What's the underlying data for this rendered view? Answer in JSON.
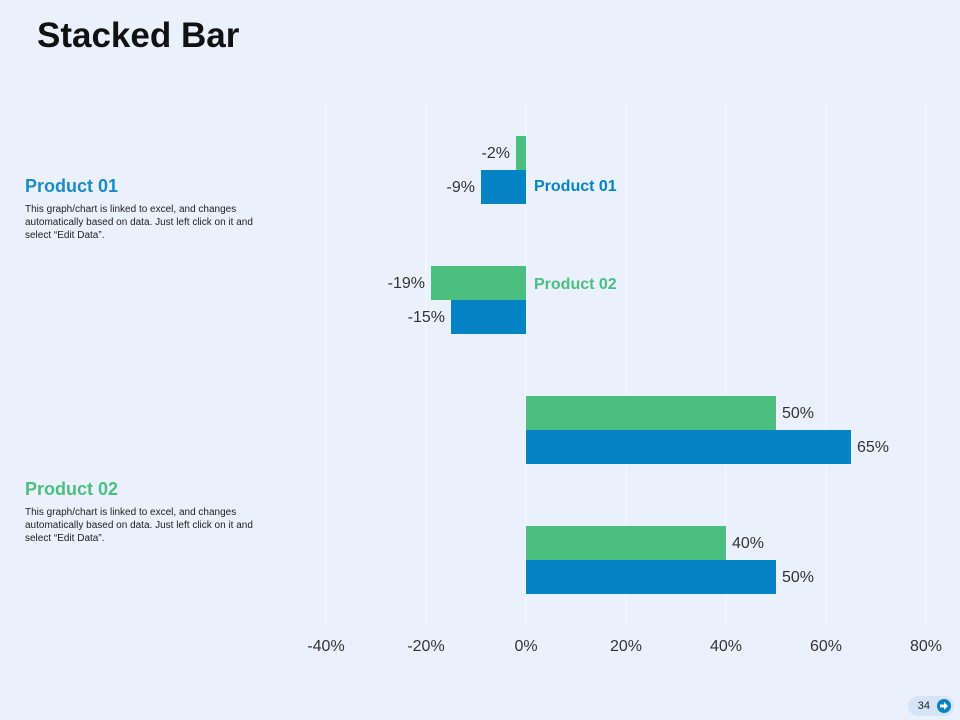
{
  "title": "Stacked Bar",
  "panels": [
    {
      "heading": "Product 01",
      "text": "This graph/chart is linked to excel, and changes automatically based on data. Just left click on it and select “Edit Data”."
    },
    {
      "heading": "Product 02",
      "text": "This graph/chart is linked to excel, and changes automatically based on data. Just left click on it and select “Edit Data”."
    }
  ],
  "page_number": "34",
  "chart_data": {
    "type": "bar",
    "orientation": "horizontal",
    "categories": [
      null,
      null,
      null,
      null
    ],
    "series": [
      {
        "name": "Product 01",
        "color": "#0683c5",
        "values": [
          -9,
          -15,
          65,
          50
        ],
        "value_labels": [
          "-9%",
          "-15%",
          "65%",
          "50%"
        ]
      },
      {
        "name": "Product 02",
        "color": "#4bbf7f",
        "values": [
          -2,
          -19,
          50,
          40
        ],
        "value_labels": [
          "-2%",
          "-19%",
          "50%",
          "40%"
        ]
      }
    ],
    "xlim": [
      -40,
      80
    ],
    "xticks": [
      {
        "value": -40,
        "label": "-40%"
      },
      {
        "value": -20,
        "label": "-20%"
      },
      {
        "value": 0,
        "label": "0%"
      },
      {
        "value": 20,
        "label": "20%"
      },
      {
        "value": 40,
        "label": "40%"
      },
      {
        "value": 60,
        "label": "60%"
      },
      {
        "value": 80,
        "label": "80%"
      }
    ],
    "grid": true
  }
}
